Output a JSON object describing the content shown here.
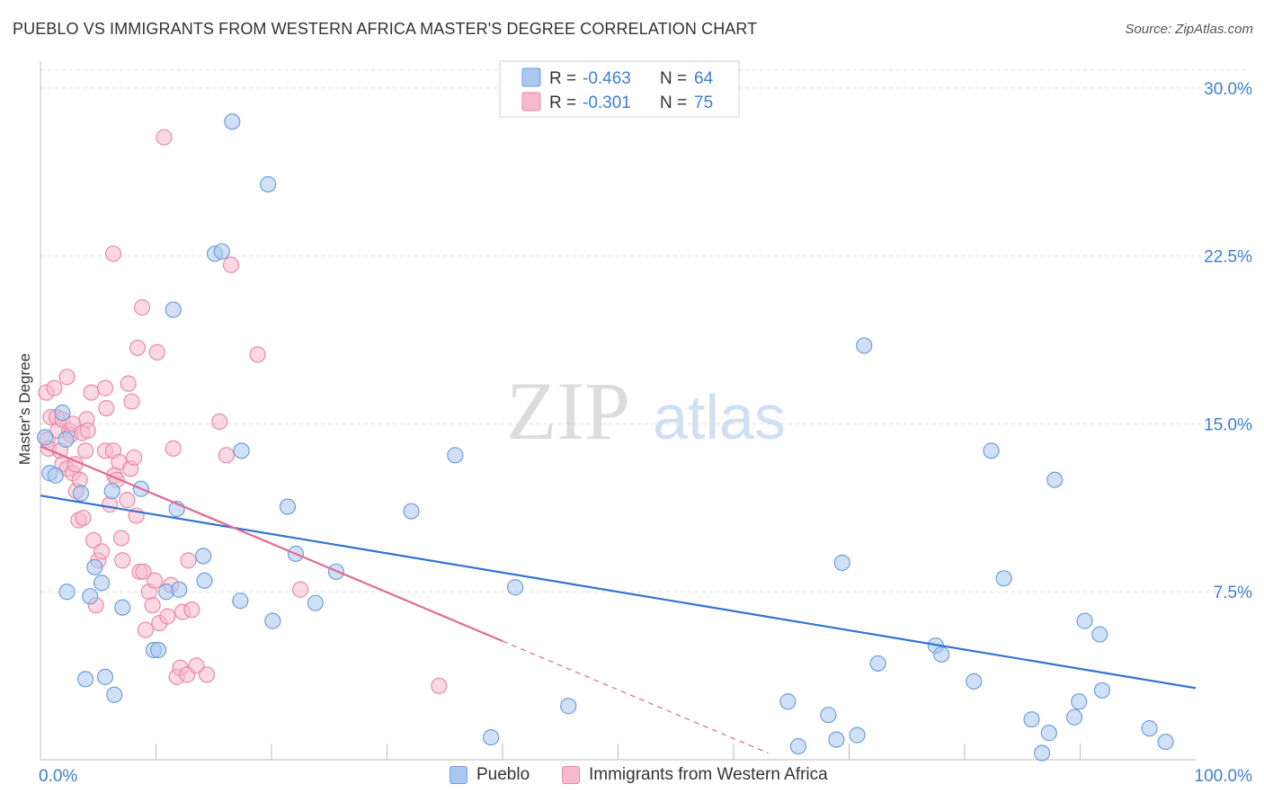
{
  "title": "PUEBLO VS IMMIGRANTS FROM WESTERN AFRICA MASTER'S DEGREE CORRELATION CHART",
  "source": "Source: ZipAtlas.com",
  "watermark": {
    "zip": "ZIP",
    "atlas": "atlas"
  },
  "colors": {
    "blue_fill": "#a9c8f0",
    "blue_stroke": "#6f9fd8",
    "blue_line": "#2f74d0",
    "pink_fill": "#f7b9cd",
    "pink_stroke": "#e98aa8",
    "pink_line": "#e06a95",
    "axis_text": "#3f7fd0",
    "grid": "#dddddd"
  },
  "chart_data": {
    "type": "scatter",
    "title": "PUEBLO VS IMMIGRANTS FROM WESTERN AFRICA MASTER'S DEGREE CORRELATION CHART",
    "xlabel": "",
    "ylabel": "Master's Degree",
    "xlim": [
      0,
      100
    ],
    "ylim": [
      0,
      30.8
    ],
    "x_tick_labels": [
      "0.0%",
      "100.0%"
    ],
    "y_ticks": [
      7.5,
      15.0,
      22.5,
      30.0
    ],
    "y_tick_labels": [
      "7.5%",
      "15.0%",
      "22.5%",
      "30.0%"
    ],
    "grid": true,
    "stats": [
      {
        "series": "Pueblo",
        "r_label": "R =",
        "r": "-0.463",
        "n_label": "N =",
        "n": "64"
      },
      {
        "series": "Immigrants from Western Africa",
        "r_label": "R =",
        "r": "-0.301",
        "n_label": "N =",
        "n": "75"
      }
    ],
    "series": [
      {
        "name": "Pueblo",
        "color": "#a9c8f0",
        "trend": {
          "x0": 0,
          "y0": 11.8,
          "x1": 100,
          "y1": 3.2,
          "dashed_from": null
        },
        "points": [
          [
            0.4,
            14.4
          ],
          [
            0.8,
            12.8
          ],
          [
            1.3,
            12.7
          ],
          [
            1.9,
            15.5
          ],
          [
            2.2,
            14.3
          ],
          [
            2.3,
            7.5
          ],
          [
            3.5,
            11.9
          ],
          [
            3.9,
            3.6
          ],
          [
            4.3,
            7.3
          ],
          [
            4.7,
            8.6
          ],
          [
            5.3,
            7.9
          ],
          [
            5.6,
            3.7
          ],
          [
            6.2,
            12.0
          ],
          [
            6.4,
            2.9
          ],
          [
            7.1,
            6.8
          ],
          [
            8.7,
            12.1
          ],
          [
            9.8,
            4.9
          ],
          [
            10.2,
            4.9
          ],
          [
            10.9,
            7.5
          ],
          [
            11.8,
            11.2
          ],
          [
            12.0,
            7.6
          ],
          [
            14.1,
            9.1
          ],
          [
            14.2,
            8.0
          ],
          [
            16.6,
            28.5
          ],
          [
            15.1,
            22.6
          ],
          [
            15.7,
            22.7
          ],
          [
            17.3,
            7.1
          ],
          [
            17.4,
            13.8
          ],
          [
            11.5,
            20.1
          ],
          [
            19.7,
            25.7
          ],
          [
            20.1,
            6.2
          ],
          [
            21.4,
            11.3
          ],
          [
            22.1,
            9.2
          ],
          [
            23.8,
            7.0
          ],
          [
            25.6,
            8.4
          ],
          [
            32.1,
            11.1
          ],
          [
            35.9,
            13.6
          ],
          [
            39.0,
            1.0
          ],
          [
            41.1,
            7.7
          ],
          [
            45.7,
            2.4
          ],
          [
            69.4,
            8.8
          ],
          [
            64.7,
            2.6
          ],
          [
            65.6,
            0.6
          ],
          [
            68.2,
            2.0
          ],
          [
            68.9,
            0.9
          ],
          [
            70.7,
            1.1
          ],
          [
            71.3,
            18.5
          ],
          [
            72.5,
            4.3
          ],
          [
            77.5,
            5.1
          ],
          [
            78.0,
            4.7
          ],
          [
            80.8,
            3.5
          ],
          [
            82.3,
            13.8
          ],
          [
            83.4,
            8.1
          ],
          [
            85.8,
            1.8
          ],
          [
            86.7,
            0.3
          ],
          [
            87.3,
            1.2
          ],
          [
            87.8,
            12.5
          ],
          [
            89.5,
            1.9
          ],
          [
            89.9,
            2.6
          ],
          [
            90.4,
            6.2
          ],
          [
            91.7,
            5.6
          ],
          [
            91.9,
            3.1
          ],
          [
            96.0,
            1.4
          ],
          [
            97.4,
            0.8
          ]
        ]
      },
      {
        "name": "Immigrants from Western Africa",
        "color": "#f7b9cd",
        "trend": {
          "x0": 0,
          "y0": 14.0,
          "x1": 40.0,
          "y1": 5.3,
          "dashed_to_x": 63.0
        },
        "points": [
          [
            0.5,
            16.4
          ],
          [
            0.6,
            14.3
          ],
          [
            0.7,
            13.9
          ],
          [
            0.9,
            15.3
          ],
          [
            1.2,
            16.6
          ],
          [
            1.4,
            15.3
          ],
          [
            1.5,
            14.7
          ],
          [
            1.7,
            13.8
          ],
          [
            1.9,
            15.2
          ],
          [
            1.9,
            13.2
          ],
          [
            2.3,
            17.1
          ],
          [
            2.3,
            13.0
          ],
          [
            2.5,
            14.7
          ],
          [
            2.6,
            14.5
          ],
          [
            2.8,
            15.0
          ],
          [
            2.8,
            12.8
          ],
          [
            3.0,
            13.2
          ],
          [
            3.1,
            12.0
          ],
          [
            3.3,
            10.7
          ],
          [
            3.4,
            12.5
          ],
          [
            3.6,
            14.6
          ],
          [
            3.7,
            10.8
          ],
          [
            3.9,
            13.8
          ],
          [
            4.0,
            15.2
          ],
          [
            4.1,
            14.7
          ],
          [
            4.4,
            16.4
          ],
          [
            4.6,
            9.8
          ],
          [
            4.8,
            6.9
          ],
          [
            5.0,
            8.9
          ],
          [
            5.3,
            9.3
          ],
          [
            5.6,
            13.8
          ],
          [
            5.6,
            16.6
          ],
          [
            5.7,
            15.7
          ],
          [
            6.0,
            11.4
          ],
          [
            6.3,
            13.8
          ],
          [
            6.4,
            12.7
          ],
          [
            6.6,
            12.5
          ],
          [
            6.8,
            13.3
          ],
          [
            7.0,
            9.9
          ],
          [
            7.1,
            8.9
          ],
          [
            7.5,
            11.6
          ],
          [
            7.6,
            16.8
          ],
          [
            7.8,
            13.0
          ],
          [
            7.9,
            16.0
          ],
          [
            8.1,
            13.5
          ],
          [
            8.3,
            10.9
          ],
          [
            8.4,
            18.4
          ],
          [
            8.6,
            8.4
          ],
          [
            8.8,
            20.2
          ],
          [
            8.9,
            8.4
          ],
          [
            9.1,
            5.8
          ],
          [
            9.4,
            7.5
          ],
          [
            9.7,
            6.9
          ],
          [
            9.9,
            8.0
          ],
          [
            10.1,
            18.2
          ],
          [
            10.3,
            6.1
          ],
          [
            11.0,
            6.4
          ],
          [
            11.3,
            7.8
          ],
          [
            11.5,
            13.9
          ],
          [
            11.8,
            3.7
          ],
          [
            12.1,
            4.1
          ],
          [
            12.3,
            6.6
          ],
          [
            12.7,
            3.8
          ],
          [
            12.8,
            8.9
          ],
          [
            13.1,
            6.7
          ],
          [
            13.5,
            4.2
          ],
          [
            14.4,
            3.8
          ],
          [
            15.5,
            15.1
          ],
          [
            16.1,
            13.6
          ],
          [
            16.5,
            22.1
          ],
          [
            6.3,
            22.6
          ],
          [
            10.7,
            27.8
          ],
          [
            18.8,
            18.1
          ],
          [
            22.5,
            7.6
          ],
          [
            34.5,
            3.3
          ]
        ]
      }
    ]
  },
  "legend_bottom": [
    {
      "label": "Pueblo"
    },
    {
      "label": "Immigrants from Western Africa"
    }
  ]
}
